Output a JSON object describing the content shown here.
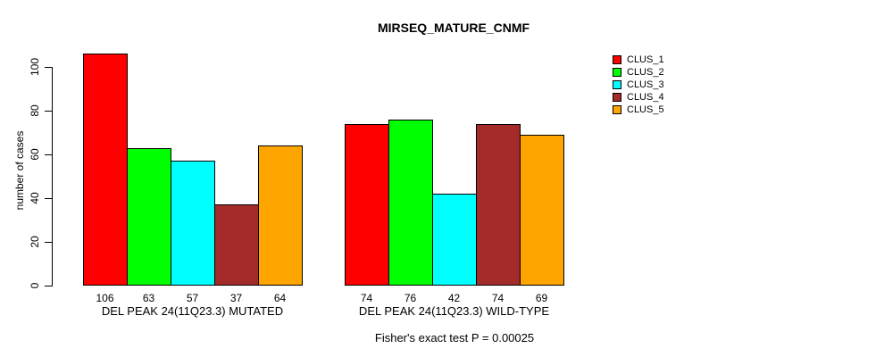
{
  "chart_data": {
    "type": "bar",
    "title": "MIRSEQ_MATURE_CNMF",
    "ylabel": "number of cases",
    "xlabel": "",
    "ylim": [
      0,
      106
    ],
    "yticks": [
      0,
      20,
      40,
      60,
      80,
      100
    ],
    "grid": false,
    "legend_position": "right",
    "bar_value_labels_shown": true,
    "categories": [
      "DEL PEAK 24(11Q23.3) MUTATED",
      "DEL PEAK 24(11Q23.3) WILD-TYPE"
    ],
    "series": [
      {
        "name": "CLUS_1",
        "color": "#FF0000",
        "values": [
          106,
          74
        ]
      },
      {
        "name": "CLUS_2",
        "color": "#00FF00",
        "values": [
          63,
          76
        ]
      },
      {
        "name": "CLUS_3",
        "color": "#00FFFF",
        "values": [
          57,
          42
        ]
      },
      {
        "name": "CLUS_4",
        "color": "#A52A2A",
        "values": [
          37,
          74
        ]
      },
      {
        "name": "CLUS_5",
        "color": "#FFA500",
        "values": [
          64,
          69
        ]
      }
    ],
    "annotation": "Fisher's exact test P = 0.00025"
  },
  "colors": {
    "axis": "#000000",
    "text": "#000000",
    "background": "#FFFFFF"
  }
}
